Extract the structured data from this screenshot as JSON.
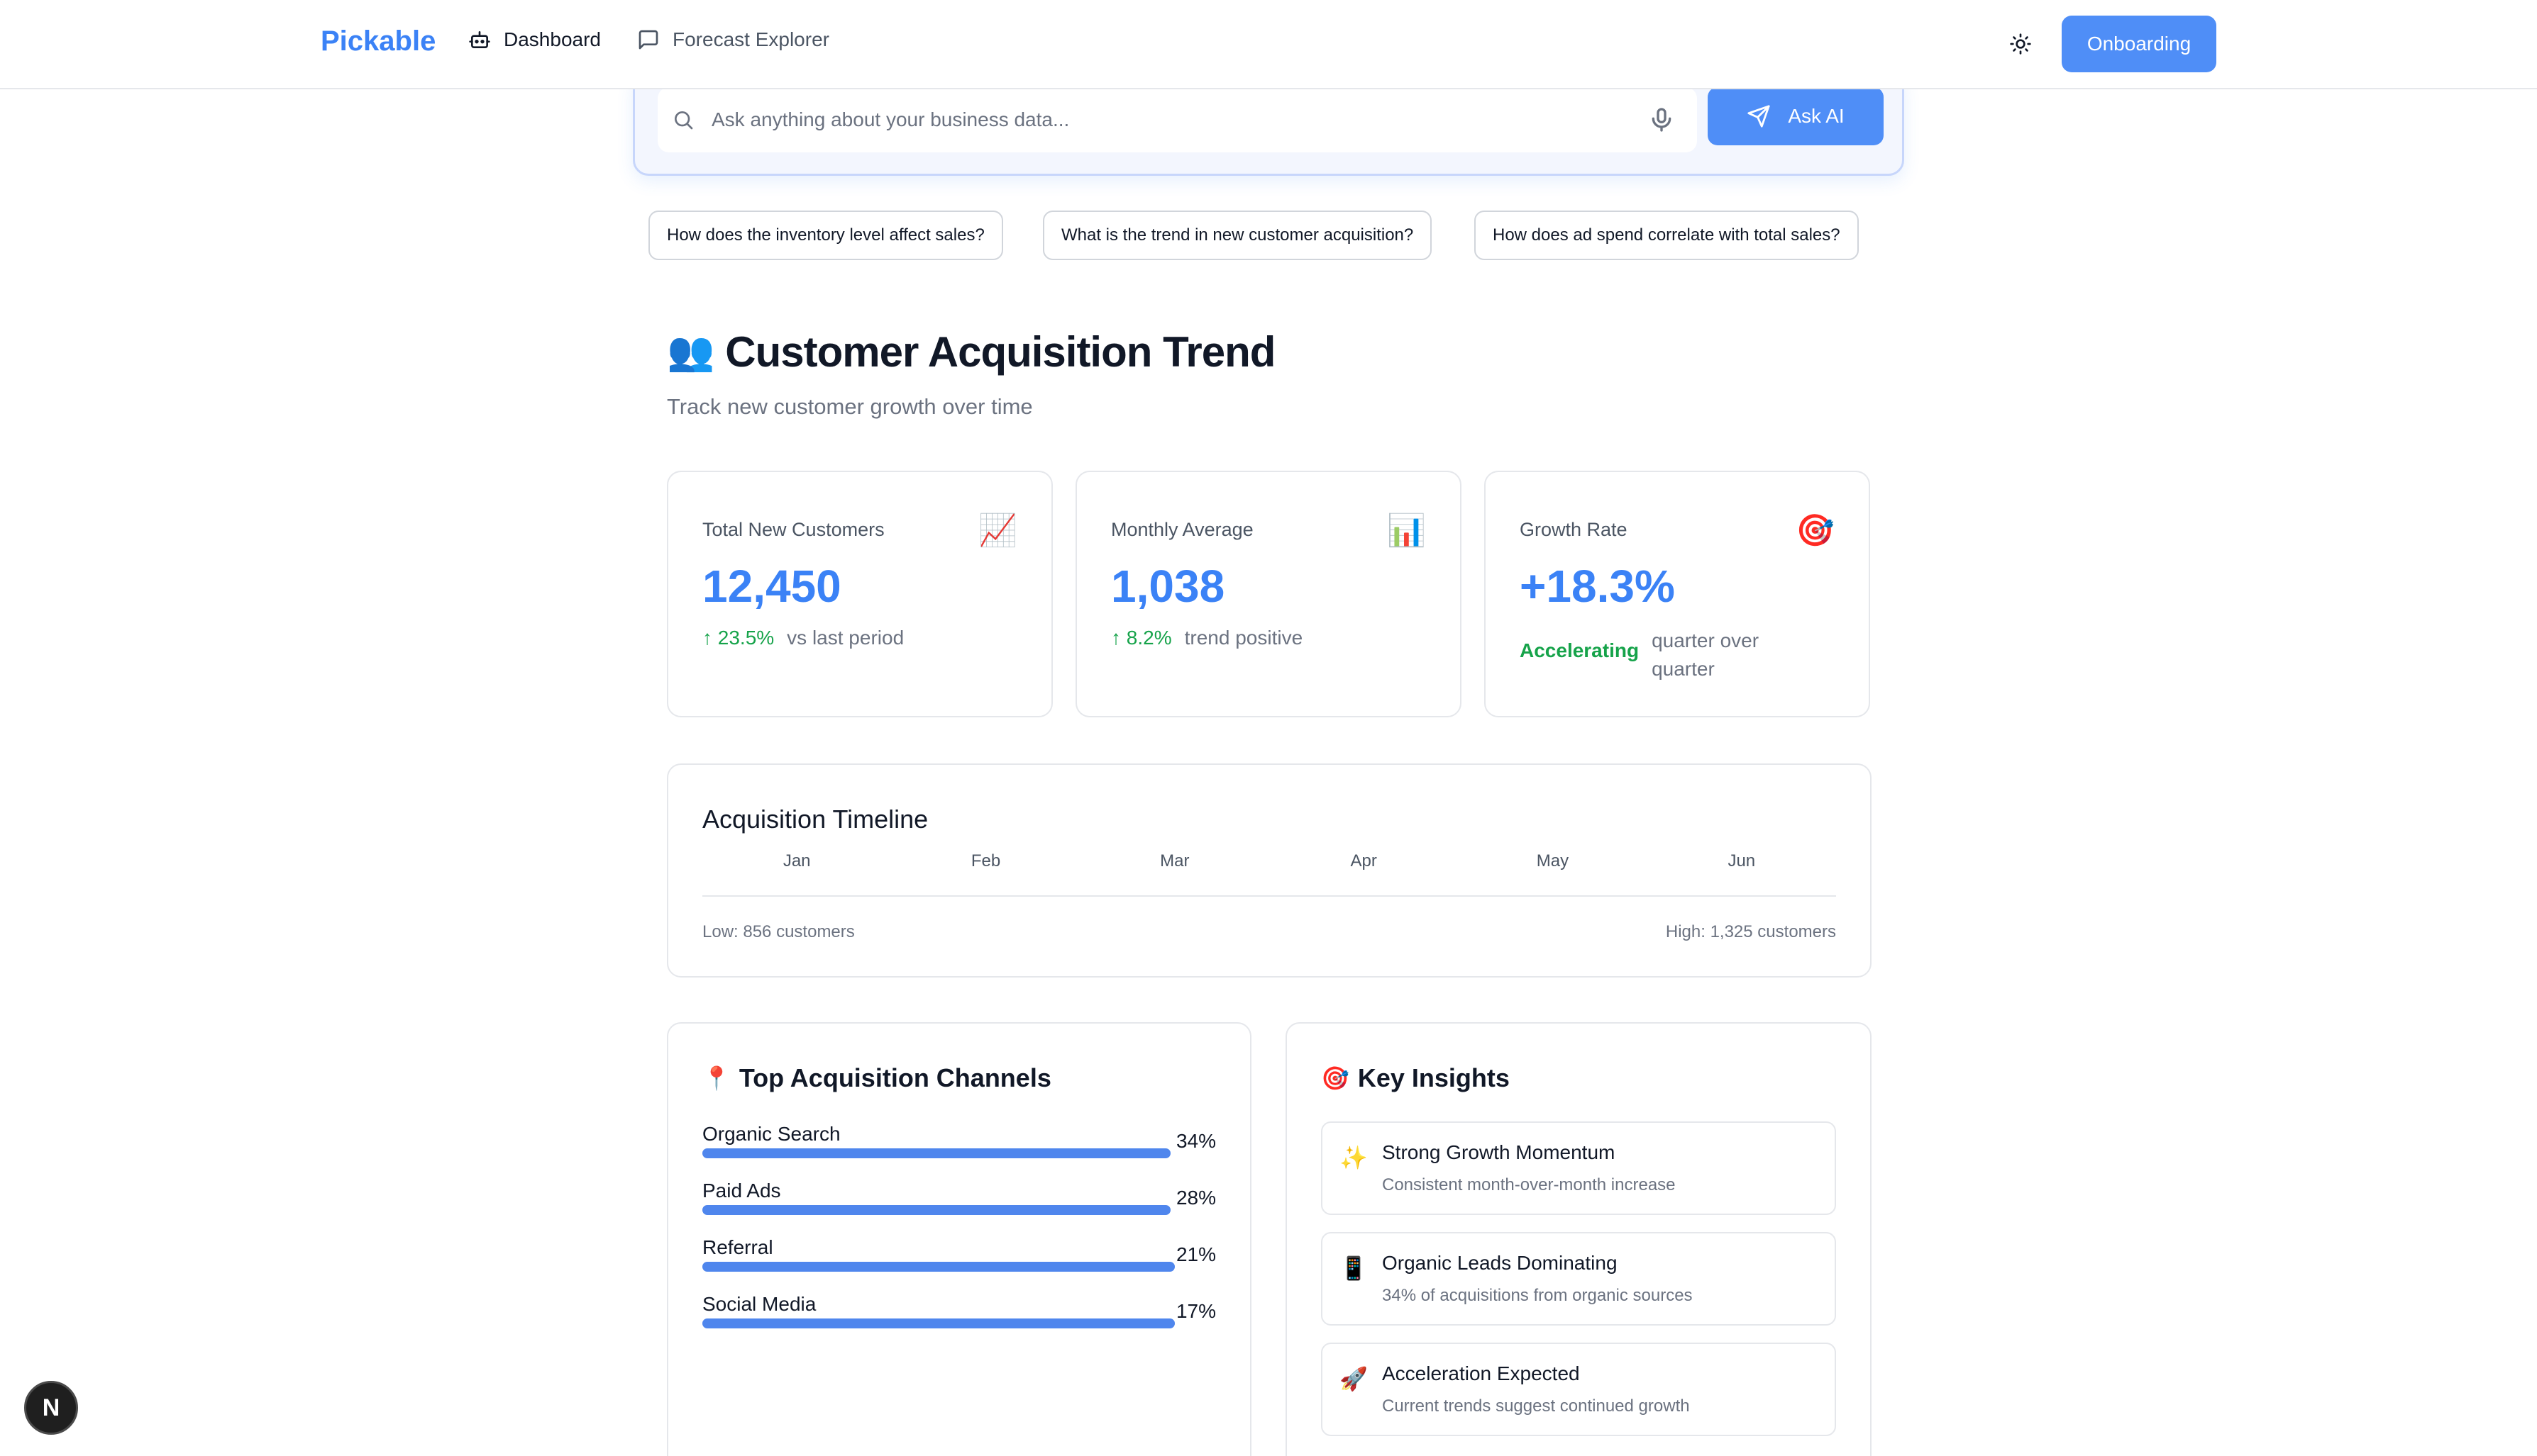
{
  "header": {
    "brand": "Pickable",
    "nav": [
      {
        "label": "Dashboard",
        "icon": "bot-icon"
      },
      {
        "label": "Forecast Explorer",
        "icon": "message-square-icon"
      }
    ],
    "onboarding_label": "Onboarding"
  },
  "search": {
    "placeholder": "Ask anything about your business data...",
    "ask_label": "Ask AI"
  },
  "suggestions": [
    "How does the inventory level affect sales?",
    "What is the trend in new customer acquisition?",
    "How does ad spend correlate with total sales?"
  ],
  "page": {
    "title_emoji": "👥",
    "title": "Customer Acquisition Trend",
    "subtitle": "Track new customer growth over time"
  },
  "stats": [
    {
      "label": "Total New Customers",
      "emoji": "📈",
      "value": "12,450",
      "delta": "↑ 23.5%",
      "note": "vs last period"
    },
    {
      "label": "Monthly Average",
      "emoji": "📊",
      "value": "1,038",
      "delta": "↑ 8.2%",
      "note": "trend positive"
    },
    {
      "label": "Growth Rate",
      "emoji": "🎯",
      "value": "+18.3%",
      "delta": "Accelerating",
      "note": "quarter over quarter"
    }
  ],
  "timeline": {
    "title": "Acquisition Timeline",
    "months": [
      "Jan",
      "Feb",
      "Mar",
      "Apr",
      "May",
      "Jun"
    ],
    "low": "Low: 856 customers",
    "high": "High: 1,325 customers"
  },
  "channels": {
    "emoji": "📍",
    "title": "Top Acquisition Channels",
    "items": [
      {
        "name": "Organic Search",
        "pct": "34%",
        "value": 34
      },
      {
        "name": "Paid Ads",
        "pct": "28%",
        "value": 28
      },
      {
        "name": "Referral",
        "pct": "21%",
        "value": 21
      },
      {
        "name": "Social Media",
        "pct": "17%",
        "value": 17
      }
    ]
  },
  "insights": {
    "emoji": "🎯",
    "title": "Key Insights",
    "items": [
      {
        "icon": "✨",
        "title": "Strong Growth Momentum",
        "desc": "Consistent month-over-month increase"
      },
      {
        "icon": "📱",
        "title": "Organic Leads Dominating",
        "desc": "34% of acquisitions from organic sources"
      },
      {
        "icon": "🚀",
        "title": "Acceleration Expected",
        "desc": "Current trends suggest continued growth"
      }
    ]
  },
  "badge": "N",
  "colors": {
    "accent": "#3b82f6",
    "positive": "#16a34a"
  }
}
